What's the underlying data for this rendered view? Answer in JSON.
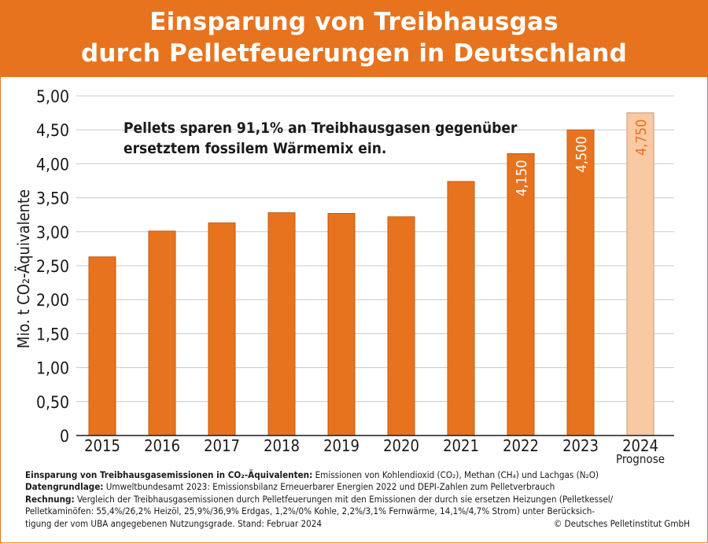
{
  "header": {
    "title_line1": "Einsparung von Treibhausgas",
    "title_line2": "durch Pelletfeuerungen in Deutschland"
  },
  "colors": {
    "accent": "#e8731e",
    "bar": "#e8731e",
    "forecast_bar": "#f8c9a3",
    "value_label_forecast": "#e8731e",
    "value_label": "#ffffff"
  },
  "chart_data": {
    "type": "bar",
    "categories": [
      "2015",
      "2016",
      "2017",
      "2018",
      "2019",
      "2020",
      "2021",
      "2022",
      "2023",
      "2024"
    ],
    "category_sublabels": [
      "",
      "",
      "",
      "",
      "",
      "",
      "",
      "",
      "",
      "Prognose"
    ],
    "values": [
      2.63,
      3.01,
      3.13,
      3.28,
      3.27,
      3.22,
      3.74,
      4.15,
      4.5,
      4.75
    ],
    "forecast_index": 9,
    "data_labels": [
      "",
      "",
      "",
      "",
      "",
      "",
      "",
      "4,150",
      "4,500",
      "4,750"
    ],
    "ylabel": "Mio. t CO₂-Äquivalente",
    "ylim": [
      0,
      5
    ],
    "yticks": [
      0,
      0.5,
      1,
      1.5,
      2,
      2.5,
      3,
      3.5,
      4,
      4.5,
      5
    ],
    "ytick_labels": [
      "0",
      "0,50",
      "1,00",
      "1,50",
      "2,00",
      "2,50",
      "3,00",
      "3,50",
      "4,00",
      "4,50",
      "5,00"
    ],
    "grid": true,
    "annotation": [
      "Pellets sparen 91,1% an Treibhausgasen gegenüber",
      "ersetztem fossilem Wärmemix ein."
    ]
  },
  "footer": {
    "l1_bold": "Einsparung von Treibhausgasemissionen in CO₂-Äquivalenten:",
    "l1_text": " Emissionen von Kohlendioxid (CO₂), Methan (CH₄) und Lachgas (N₂O)",
    "l2_bold": "Datengrundlage:",
    "l2_text": " Umweltbundesamt 2023: Emissionsbilanz Erneuerbarer Energien 2022 und DEPI-Zahlen zum Pelletverbrauch",
    "l3_bold": "Rechnung:",
    "l3_text": " Vergleich der Treibhausgasemissionen durch Pelletfeuerungen mit den Emissionen der durch sie ersetzen Heizungen (Pelletkessel/",
    "l4_text": "Pelletkaminöfen: 55,4%/26,2% Heizöl, 25,9%/36,9% Erdgas, 1,2%/0% Kohle, 2,2%/3,1% Fernwärme, 14,1%/4,7% Strom) unter Berücksich-",
    "l5_text": "tigung der vom UBA angegebenen Nutzungsgrade. Stand: Februar 2024",
    "copyright": "© Deutsches Pelletinstitut GmbH"
  }
}
